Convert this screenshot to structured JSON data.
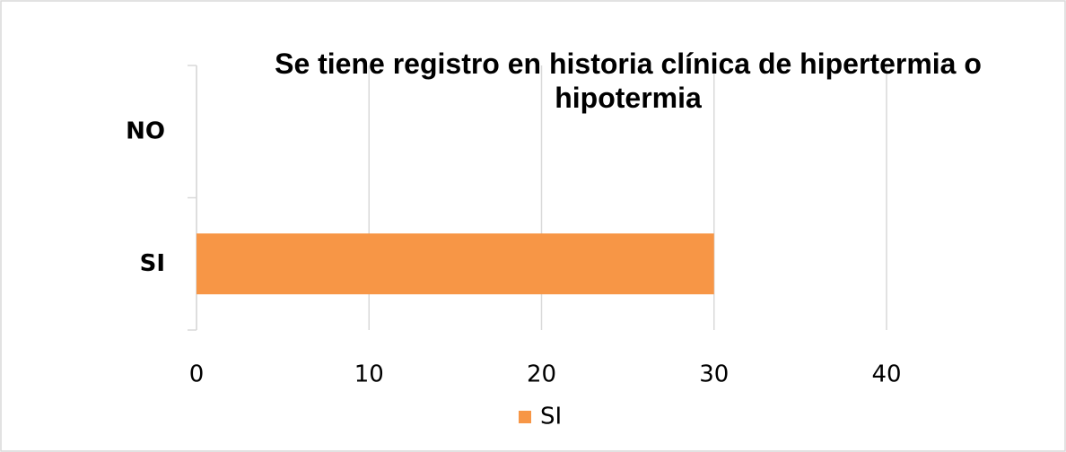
{
  "chart_data": {
    "type": "bar",
    "orientation": "horizontal",
    "title": "Se tiene registro en historia clínica de hipertermia o hipotermia",
    "categories": [
      "NO",
      "SI"
    ],
    "series": [
      {
        "name": "SI",
        "color": "#f79646",
        "values": [
          0,
          30
        ]
      }
    ],
    "xlim": [
      0,
      40
    ],
    "xticks": [
      0,
      10,
      20,
      30,
      40
    ],
    "grid": true,
    "legend": "bottom"
  }
}
